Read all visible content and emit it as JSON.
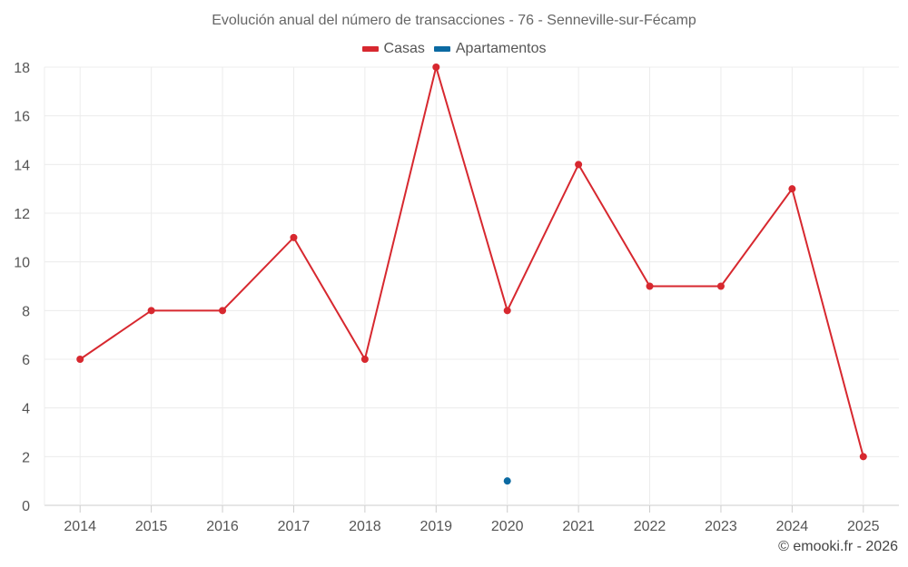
{
  "chart_data": {
    "type": "line",
    "title": "Evolución anual del número de transacciones - 76 - Senneville-sur-Fécamp",
    "x": [
      "2014",
      "2015",
      "2016",
      "2017",
      "2018",
      "2019",
      "2020",
      "2021",
      "2022",
      "2023",
      "2024",
      "2025"
    ],
    "series": [
      {
        "name": "Casas",
        "color": "#d7282f",
        "values": [
          6,
          8,
          8,
          11,
          6,
          18,
          8,
          14,
          9,
          9,
          13,
          2
        ]
      },
      {
        "name": "Apartamentos",
        "color": "#0b6aa2",
        "values": [
          null,
          null,
          null,
          null,
          null,
          null,
          1,
          null,
          null,
          null,
          null,
          null
        ]
      }
    ],
    "yticks": [
      0,
      2,
      4,
      6,
      8,
      10,
      12,
      14,
      16,
      18
    ],
    "ylim": [
      0,
      18
    ],
    "grid": true,
    "legend_position": "top-center"
  },
  "credit": "© emooki.fr - 2026"
}
